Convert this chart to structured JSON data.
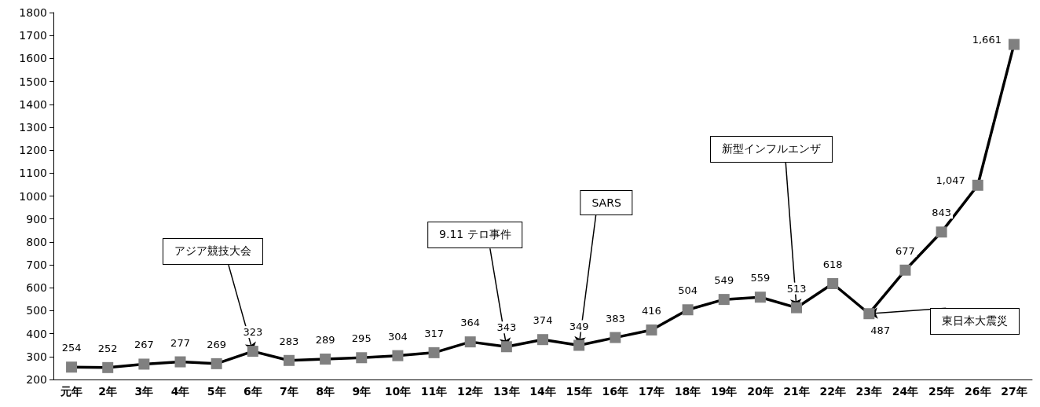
{
  "chart_data": {
    "type": "line",
    "categories": [
      "元年",
      "2年",
      "3年",
      "4年",
      "5年",
      "6年",
      "7年",
      "8年",
      "9年",
      "10年",
      "11年",
      "12年",
      "13年",
      "14年",
      "15年",
      "16年",
      "17年",
      "18年",
      "19年",
      "20年",
      "21年",
      "22年",
      "23年",
      "24年",
      "25年",
      "26年",
      "27年"
    ],
    "series": [
      {
        "color": "#000000",
        "values": [
          254,
          252,
          267,
          277,
          269,
          323,
          283,
          289,
          295,
          304,
          317,
          364,
          343,
          374,
          349,
          383,
          416,
          504,
          549,
          559,
          513,
          618,
          487,
          677,
          843,
          1047,
          1661
        ],
        "value_labels": [
          "254",
          "252",
          "267",
          "277",
          "269",
          "323",
          "283",
          "289",
          "295",
          "304",
          "317",
          "364",
          "343",
          "374",
          "349",
          "383",
          "416",
          "504",
          "549",
          "559",
          "513",
          "618",
          "487",
          "677",
          "843",
          "1,047",
          "1,661"
        ]
      }
    ],
    "marker": "square",
    "line_style": "solid",
    "grid": false,
    "ylim": [
      200,
      1800
    ],
    "yticks": [
      200,
      300,
      400,
      500,
      600,
      700,
      800,
      900,
      1000,
      1100,
      1200,
      1300,
      1400,
      1500,
      1600,
      1700,
      1800
    ],
    "annotations": [
      {
        "text": "アジア競技大会",
        "x": "6年",
        "y": 323
      },
      {
        "text": "9.11 テロ事件",
        "x": "13年",
        "y": 343
      },
      {
        "text": "SARS",
        "x": "15年",
        "y": 349
      },
      {
        "text": "新型インフルエンザ",
        "x": "21年",
        "y": 513
      },
      {
        "text": "東日本大震災",
        "x": "23年",
        "y": 487
      }
    ]
  }
}
